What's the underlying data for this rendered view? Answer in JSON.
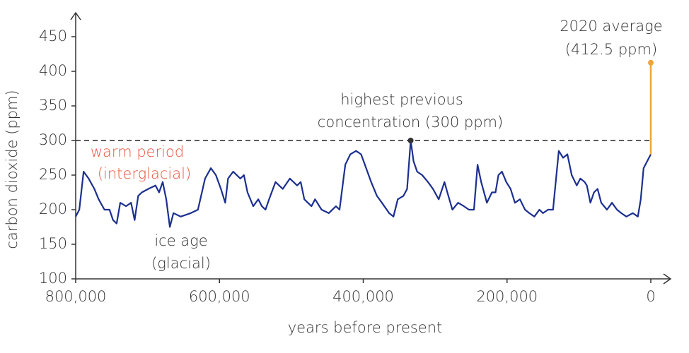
{
  "chart_data": {
    "type": "line",
    "x_label": "years before present",
    "y_label": "carbon dioxide (ppm)",
    "xlim": [
      800000,
      0
    ],
    "ylim": [
      100,
      450
    ],
    "xticks": [
      {
        "value": 800000,
        "label": "800,000"
      },
      {
        "value": 600000,
        "label": "600,000"
      },
      {
        "value": 400000,
        "label": "400,000"
      },
      {
        "value": 200000,
        "label": "200,000"
      },
      0
    ],
    "yticks": [
      100,
      150,
      200,
      250,
      300,
      350,
      400,
      450
    ],
    "reference_line": 300,
    "series": [
      {
        "color": "#1c2f8f",
        "x": [
          800000,
          795000,
          789000,
          782000,
          774000,
          768000,
          760000,
          753000,
          748000,
          743000,
          738000,
          730000,
          723000,
          718000,
          713000,
          708000,
          699000,
          689000,
          684000,
          679000,
          674000,
          669000,
          664000,
          654000,
          640000,
          630000,
          620000,
          612000,
          605000,
          598000,
          592000,
          588000,
          581000,
          571000,
          566000,
          561000,
          553000,
          546000,
          541000,
          536000,
          531000,
          522000,
          512000,
          502000,
          492000,
          487000,
          482000,
          472000,
          467000,
          458000,
          448000,
          438000,
          433000,
          425000,
          418000,
          410000,
          403000,
          396000,
          389000,
          381000,
          374000,
          364000,
          358000,
          352000,
          344000,
          339000,
          334000,
          330000,
          325000,
          318000,
          310000,
          303000,
          295000,
          287000,
          283000,
          276000,
          268000,
          260000,
          253000,
          246000,
          241000,
          236000,
          228000,
          221000,
          216000,
          212000,
          207000,
          201000,
          195000,
          189000,
          182000,
          175000,
          169000,
          162000,
          155000,
          150000,
          143000,
          136000,
          128000,
          122000,
          116000,
          110000,
          103000,
          98000,
          92000,
          89000,
          84000,
          79000,
          74000,
          69000,
          61000,
          54000,
          47000,
          41000,
          34000,
          25000,
          18000,
          14000,
          10000,
          5000,
          0
        ],
        "values": [
          190,
          200,
          255,
          245,
          230,
          215,
          200,
          200,
          185,
          180,
          210,
          205,
          210,
          185,
          220,
          225,
          230,
          235,
          225,
          240,
          215,
          175,
          195,
          190,
          195,
          200,
          245,
          260,
          250,
          230,
          210,
          245,
          255,
          245,
          250,
          225,
          205,
          215,
          205,
          200,
          215,
          240,
          230,
          245,
          235,
          240,
          215,
          205,
          215,
          200,
          195,
          205,
          200,
          265,
          280,
          285,
          280,
          260,
          240,
          220,
          210,
          195,
          190,
          215,
          220,
          230,
          300,
          270,
          255,
          250,
          240,
          230,
          215,
          240,
          225,
          200,
          210,
          205,
          200,
          200,
          265,
          240,
          210,
          225,
          225,
          250,
          255,
          240,
          230,
          210,
          215,
          200,
          195,
          190,
          200,
          195,
          200,
          200,
          285,
          275,
          280,
          250,
          235,
          245,
          240,
          235,
          210,
          225,
          230,
          210,
          200,
          210,
          200,
          195,
          190,
          195,
          190,
          215,
          260,
          270,
          280
        ]
      }
    ],
    "previous_max": {
      "x": 334000,
      "value": 300
    },
    "current": {
      "x": 0,
      "value": 412.5,
      "color": "#f0a53c"
    },
    "annotations": {
      "warm": [
        "warm period",
        "(interglacial)"
      ],
      "ice": [
        "ice age",
        "(glacial)"
      ],
      "previous": [
        "highest  previous",
        "concentration (300 ppm)"
      ],
      "current": [
        "2020 average",
        "(412.5 ppm)"
      ]
    }
  }
}
